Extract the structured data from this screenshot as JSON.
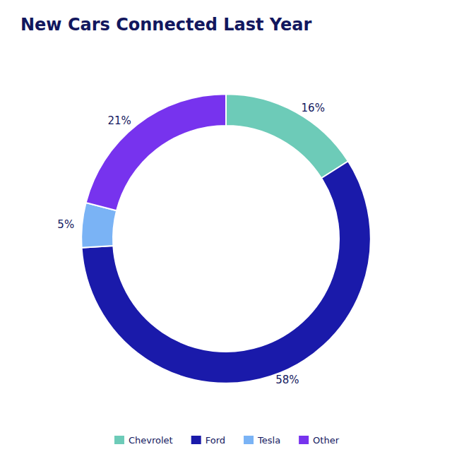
{
  "chart_data": {
    "type": "pie",
    "title": "New Cars Connected Last Year",
    "categories": [
      "Chevrolet",
      "Ford",
      "Tesla",
      "Other"
    ],
    "values": [
      16,
      58,
      5,
      21
    ],
    "value_labels": [
      "16%",
      "58%",
      "5%",
      "21%"
    ],
    "colors": [
      "#6dcbb8",
      "#1a1aaa",
      "#7ab3f5",
      "#7733ee"
    ],
    "data_labels": true,
    "legend": "bottom"
  }
}
